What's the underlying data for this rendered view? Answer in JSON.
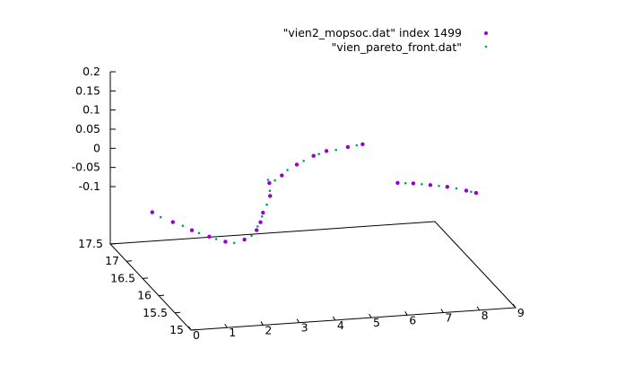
{
  "chart_data": {
    "type": "scatter",
    "projection": "3d",
    "title": "",
    "xlabel": "",
    "ylabel": "",
    "zlabel": "",
    "xlim": [
      0,
      9
    ],
    "ylim": [
      15,
      17.5
    ],
    "zlim": [
      -0.1,
      0.2
    ],
    "x_ticks": [
      "0",
      "1",
      "2",
      "3",
      "4",
      "5",
      "6",
      "7",
      "8",
      "9"
    ],
    "y_ticks": [
      "15",
      "15.5",
      "16",
      "16.5",
      "17",
      "17.5"
    ],
    "z_ticks": [
      "0.2",
      "0.15",
      "0.1",
      "0.05",
      "0",
      "-0.05",
      "-0.1"
    ],
    "grid": false,
    "legend_position": "top-right",
    "series": [
      {
        "name": "\"vien2_mopsoc.dat\" index 1499",
        "color": "#9400d3",
        "marker": "dot",
        "points": [
          [
            0.0,
            16.2,
            -0.05
          ],
          [
            0.25,
            15.84,
            -0.045
          ],
          [
            0.5,
            15.53,
            -0.04
          ],
          [
            0.75,
            15.27,
            -0.035
          ],
          [
            1.0,
            15.05,
            -0.03
          ],
          [
            1.5,
            15.02,
            -0.025
          ],
          [
            2.0,
            15.2,
            -0.02
          ],
          [
            2.25,
            15.36,
            -0.015
          ],
          [
            2.5,
            15.56,
            -0.01
          ],
          [
            3.0,
            15.9,
            0.0
          ],
          [
            3.25,
            16.2,
            0.005
          ],
          [
            3.9,
            16.54,
            -0.01
          ],
          [
            4.6,
            16.86,
            -0.015
          ],
          [
            5.3,
            17.12,
            -0.02
          ],
          [
            5.8,
            17.28,
            -0.025
          ],
          [
            6.5,
            17.4,
            -0.03
          ],
          [
            7.0,
            17.5,
            -0.035
          ],
          [
            7.2,
            16.64,
            -0.06
          ],
          [
            7.6,
            16.6,
            -0.06
          ],
          [
            8.0,
            16.52,
            -0.06
          ],
          [
            8.4,
            16.44,
            -0.06
          ],
          [
            8.8,
            16.3,
            -0.06
          ],
          [
            9.0,
            16.22,
            -0.06
          ]
        ]
      },
      {
        "name": "\"vien_pareto_front.dat\"",
        "color": "#009e73",
        "marker": "point",
        "points": [
          [
            0.1,
            16.05,
            -0.05
          ],
          [
            0.4,
            15.7,
            -0.043
          ],
          [
            0.6,
            15.42,
            -0.038
          ],
          [
            0.85,
            15.17,
            -0.033
          ],
          [
            1.2,
            15.0,
            -0.03
          ],
          [
            1.75,
            15.08,
            -0.022
          ],
          [
            2.1,
            15.28,
            -0.018
          ],
          [
            2.4,
            15.48,
            -0.012
          ],
          [
            2.75,
            15.72,
            -0.005
          ],
          [
            3.1,
            16.02,
            0.002
          ],
          [
            3.3,
            16.3,
            0.004
          ],
          [
            3.6,
            16.42,
            -0.01
          ],
          [
            4.2,
            16.7,
            -0.012
          ],
          [
            4.9,
            16.98,
            -0.018
          ],
          [
            5.5,
            17.18,
            -0.022
          ],
          [
            6.1,
            17.32,
            -0.028
          ],
          [
            6.8,
            17.46,
            -0.033
          ],
          [
            7.4,
            16.62,
            -0.06
          ],
          [
            7.8,
            16.56,
            -0.06
          ],
          [
            8.2,
            16.48,
            -0.06
          ],
          [
            8.6,
            16.38,
            -0.06
          ],
          [
            8.9,
            16.26,
            -0.06
          ]
        ]
      }
    ]
  }
}
